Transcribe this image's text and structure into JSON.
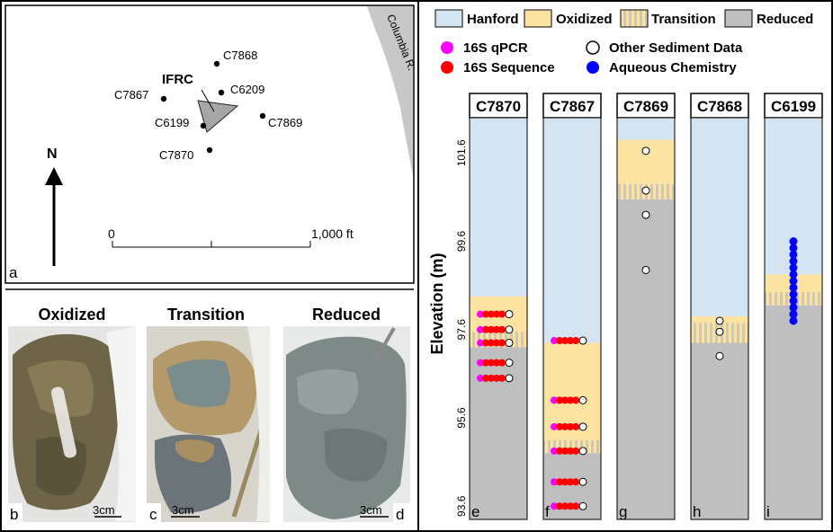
{
  "map": {
    "river_label": "Columbia R.",
    "site_label": "IFRC",
    "wells": [
      "C7868",
      "C6209",
      "C7867",
      "C6199",
      "C7869",
      "C7870"
    ],
    "north_label": "N",
    "scale_start": "0",
    "scale_end": "1,000 ft",
    "panel_letter": "a"
  },
  "photos": [
    {
      "title": "Oxidized",
      "letter": "b",
      "scale": "3cm"
    },
    {
      "title": "Transition",
      "letter": "c",
      "scale": "3cm"
    },
    {
      "title": "Reduced",
      "letter": "d",
      "scale": "3cm"
    }
  ],
  "legend": {
    "zones": [
      "Hanford",
      "Oxidized",
      "Transition",
      "Reduced"
    ],
    "markers": [
      "16S qPCR",
      "16S Sequence",
      "Other Sediment Data",
      "Aqueous Chemistry"
    ]
  },
  "colors": {
    "hanford": "#d4e5f1",
    "oxidized": "#fde3a2",
    "transition_a": "#fde3a2",
    "transition_b": "#c8c8c8",
    "reduced": "#bfbfbf",
    "qpcr": "#ff00ff",
    "sequence": "#ff0000",
    "aqueous": "#0000ff",
    "river": "#c8c8c8",
    "triangle": "#a6a6a6"
  },
  "chart_data": {
    "type": "column-diagram",
    "ylabel": "Elevation (m)",
    "yticks": [
      93.6,
      95.6,
      97.6,
      99.6,
      101.6
    ],
    "ylim": [
      93.3,
      102.4
    ],
    "columns": [
      {
        "name": "C7870",
        "letter": "e",
        "oxidized_top": 98.35,
        "transition_top": 97.55,
        "reduced_top": 97.2,
        "qpcr": [
          97.95,
          97.6,
          97.3,
          96.85,
          96.5
        ],
        "sequence": [
          97.95,
          97.6,
          97.3,
          96.85,
          96.5
        ],
        "other": [
          97.95,
          97.6,
          97.3,
          96.85,
          96.5
        ],
        "aqueous": []
      },
      {
        "name": "C7867",
        "letter": "f",
        "oxidized_top": 97.3,
        "transition_top": 95.1,
        "reduced_top": 94.8,
        "qpcr": [
          97.35,
          96.0,
          95.4,
          94.85,
          94.15,
          93.6
        ],
        "sequence": [
          97.35,
          96.0,
          95.4,
          94.85,
          94.15,
          93.6
        ],
        "other": [
          97.35,
          96.0,
          95.4,
          94.85,
          94.15,
          93.6
        ],
        "aqueous": []
      },
      {
        "name": "C7869",
        "letter": "g",
        "oxidized_top": 101.9,
        "transition_top": 100.9,
        "reduced_top": 100.55,
        "qpcr": [],
        "sequence": [],
        "other": [
          101.65,
          100.75,
          100.2,
          98.95
        ],
        "aqueous": []
      },
      {
        "name": "C7868",
        "letter": "h",
        "oxidized_top": 97.9,
        "transition_top": 97.75,
        "reduced_top": 97.3,
        "qpcr": [],
        "sequence": [],
        "other": [
          97.8,
          97.55,
          97.0
        ],
        "aqueous": []
      },
      {
        "name": "C6199",
        "letter": "i",
        "oxidized_top": 98.85,
        "transition_top": 98.45,
        "reduced_top": 98.15,
        "qpcr": [],
        "sequence": [],
        "other": [],
        "aqueous": [
          99.6,
          99.45,
          99.3,
          99.15,
          99.0,
          98.85,
          98.7,
          98.55,
          98.4,
          98.25,
          98.1,
          97.95,
          97.8
        ]
      }
    ]
  }
}
